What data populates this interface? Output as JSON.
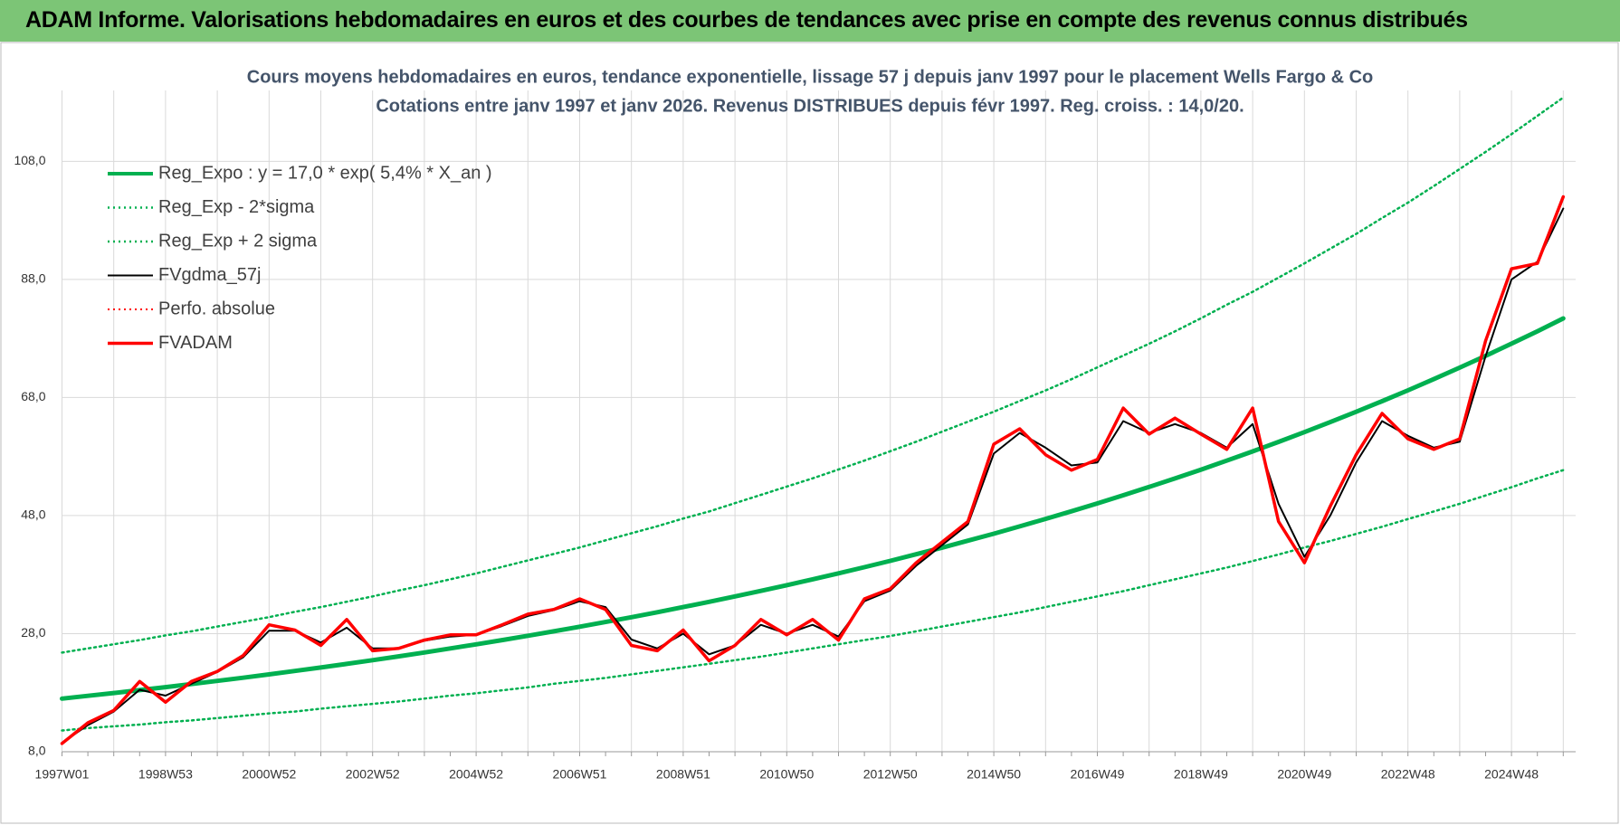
{
  "header": "ADAM Informe. Valorisations hebdomadaires en euros et des courbes de tendances avec prise en compte des revenus connus distribués",
  "chart_data": {
    "type": "line",
    "title": [
      "Cours moyens hebdomadaires en euros, tendance exponentielle, lissage 57 j depuis janv 1997  pour le placement Wells Fargo & Co",
      "Cotations entre janv 1997 et janv 2026. Revenus DISTRIBUES depuis févr 1997. Reg. croiss. : 14,0/20."
    ],
    "categories": [
      "1997W01",
      null,
      null,
      null,
      "1998W53",
      null,
      null,
      null,
      "2000W52",
      null,
      null,
      null,
      "2002W52",
      null,
      null,
      null,
      "2004W52",
      null,
      null,
      null,
      "2006W51",
      null,
      null,
      null,
      "2008W51",
      null,
      null,
      null,
      "2010W50",
      null,
      null,
      null,
      "2012W50",
      null,
      null,
      null,
      "2014W50",
      null,
      null,
      null,
      "2016W49",
      null,
      null,
      null,
      "2018W49",
      null,
      null,
      null,
      "2020W49",
      null,
      null,
      null,
      "2022W48",
      null,
      null,
      null,
      "2024W48",
      null,
      null
    ],
    "ylim": [
      8,
      120
    ],
    "yticks": [
      {
        "value": 8,
        "label": "8,0"
      },
      {
        "value": 28,
        "label": "28,0"
      },
      {
        "value": 48,
        "label": "48,0"
      },
      {
        "value": 68,
        "label": "68,0"
      },
      {
        "value": 88,
        "label": "88,0"
      },
      {
        "value": 108,
        "label": "108,0"
      }
    ],
    "grid": true,
    "legend": "top-left",
    "series": [
      {
        "name": "Reg_Expo : y = 17,0 * exp( 5,4% *  X_an )",
        "color": "#00b050",
        "width": 5,
        "dash": false,
        "values": [
          17.0,
          17.47,
          17.94,
          18.43,
          18.94,
          19.46,
          19.99,
          20.54,
          21.1,
          21.68,
          22.27,
          22.88,
          23.51,
          24.15,
          24.81,
          25.49,
          26.19,
          26.9,
          27.64,
          28.4,
          29.17,
          29.97,
          30.79,
          31.63,
          32.5,
          33.39,
          34.3,
          35.24,
          36.21,
          37.2,
          38.21,
          39.26,
          40.33,
          41.44,
          42.57,
          43.74,
          44.93,
          46.16,
          47.43,
          48.73,
          50.06,
          51.43,
          52.84,
          54.28,
          55.77,
          57.3,
          58.86,
          60.47,
          62.13,
          63.83,
          65.58,
          67.37,
          69.21,
          71.11,
          73.05,
          75.05,
          77.11,
          79.22,
          81.39
        ]
      },
      {
        "name": "Reg_Exp - 2*sigma",
        "color": "#00b050",
        "width": 2.5,
        "dash": true,
        "values": [
          11.6,
          12.0,
          12.3,
          12.6,
          13.0,
          13.3,
          13.7,
          14.1,
          14.5,
          14.8,
          15.3,
          15.7,
          16.1,
          16.5,
          17.0,
          17.5,
          17.9,
          18.4,
          18.9,
          19.5,
          20.0,
          20.5,
          21.1,
          21.7,
          22.3,
          22.9,
          23.5,
          24.1,
          24.8,
          25.5,
          26.2,
          26.9,
          27.6,
          28.4,
          29.2,
          30.0,
          30.8,
          31.6,
          32.5,
          33.4,
          34.3,
          35.2,
          36.2,
          37.2,
          38.2,
          39.2,
          40.3,
          41.4,
          42.6,
          43.7,
          44.9,
          46.1,
          47.4,
          48.7,
          50.0,
          51.4,
          52.8,
          54.3,
          55.7
        ]
      },
      {
        "name": "Reg_Exp + 2 sigma",
        "color": "#00b050",
        "width": 2.5,
        "dash": true,
        "values": [
          24.8,
          25.5,
          26.2,
          26.9,
          27.7,
          28.4,
          29.2,
          30.0,
          30.8,
          31.7,
          32.5,
          33.4,
          34.3,
          35.3,
          36.2,
          37.2,
          38.2,
          39.3,
          40.4,
          41.5,
          42.6,
          43.8,
          45.0,
          46.2,
          47.5,
          48.7,
          50.1,
          51.5,
          52.9,
          54.3,
          55.8,
          57.3,
          58.9,
          60.5,
          62.2,
          63.9,
          65.6,
          67.4,
          69.2,
          71.1,
          73.1,
          75.1,
          77.1,
          79.2,
          81.4,
          83.7,
          85.9,
          88.3,
          90.7,
          93.2,
          95.7,
          98.4,
          101.0,
          103.8,
          106.7,
          109.6,
          112.6,
          115.7,
          118.8
        ]
      },
      {
        "name": "FVgdma_57j",
        "color": "#000000",
        "width": 2,
        "dash": false,
        "values": [
          9.5,
          12.5,
          14.8,
          18.5,
          17.5,
          19.5,
          21.5,
          24,
          28.5,
          28.5,
          26.5,
          29,
          25.5,
          25.5,
          26.8,
          27.5,
          27.8,
          29.3,
          31,
          32,
          33.5,
          32.5,
          27,
          25.5,
          28,
          24.5,
          26,
          29.5,
          28,
          29.5,
          27.5,
          33.5,
          35.3,
          39.5,
          43,
          46.5,
          58.5,
          62,
          59.5,
          56.5,
          57,
          64,
          62,
          63.5,
          62,
          59.5,
          63.5,
          50,
          41,
          48,
          57,
          64,
          61.5,
          59.5,
          60.5,
          75,
          88,
          91,
          100
        ]
      },
      {
        "name": "Perfo. absolue",
        "color": "#ff0000",
        "width": 2,
        "dash": true,
        "values": [
          null,
          null,
          null,
          null,
          null,
          null,
          null,
          null,
          null,
          null,
          null,
          null,
          null,
          null,
          null,
          null,
          null,
          null,
          null,
          null,
          null,
          null,
          null,
          null,
          null,
          null,
          null,
          null,
          null,
          null,
          null,
          null,
          null,
          null,
          null,
          null,
          null,
          null,
          null,
          null,
          null,
          null,
          null,
          null,
          null,
          null,
          null,
          null,
          null,
          null,
          null,
          null,
          null,
          null,
          null,
          null,
          null,
          null,
          null
        ]
      },
      {
        "name": "FVADAM",
        "color": "#ff0000",
        "width": 3.5,
        "dash": false,
        "values": [
          9.4,
          12.9,
          15,
          19.9,
          16.4,
          19.9,
          21.6,
          24.3,
          29.5,
          28.6,
          26,
          30.4,
          25.1,
          25.5,
          26.9,
          27.8,
          27.8,
          29.5,
          31.3,
          32.1,
          33.9,
          32.1,
          26,
          25.1,
          28.6,
          23.4,
          26,
          30.4,
          27.8,
          30.4,
          26.9,
          33.9,
          35.6,
          40,
          43.5,
          47,
          60.1,
          62.7,
          58.3,
          55.7,
          57.5,
          66.2,
          61.8,
          64.5,
          61.8,
          59.2,
          66.2,
          47,
          40,
          49.6,
          58.3,
          65.3,
          61,
          59.2,
          61,
          77.6,
          89.8,
          90.7,
          102
        ]
      }
    ]
  }
}
